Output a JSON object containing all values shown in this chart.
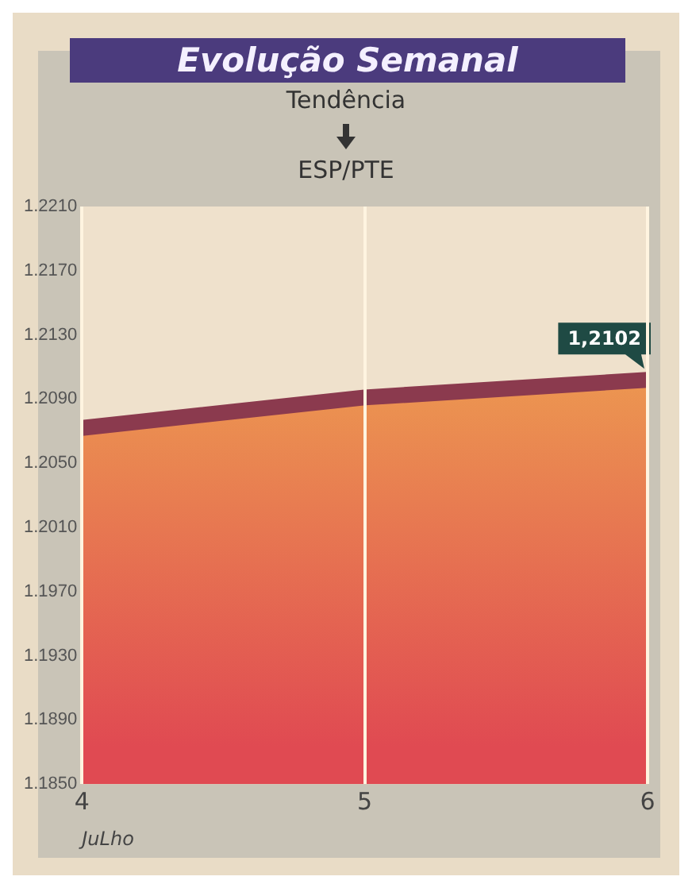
{
  "chart_data": {
    "type": "area",
    "title": "Evolução Semanal",
    "subtitle": "Tendência",
    "annotations": [
      "ESP/PTE"
    ],
    "xlabel": "JuLho",
    "x": [
      4,
      5,
      6
    ],
    "series": [
      {
        "color": "#8b3a4e",
        "values": [
          1.2072,
          1.2091,
          1.2102
        ],
        "value_labels": [
          null,
          null,
          "1,2102"
        ]
      }
    ],
    "xlim": [
      4,
      6
    ],
    "xticks": [
      4,
      5,
      6
    ],
    "ylim": [
      1.185,
      1.221
    ],
    "yticks": [
      {
        "value": 1.185,
        "label": "1.1850"
      },
      {
        "value": 1.189,
        "label": "1.1890"
      },
      {
        "value": 1.193,
        "label": "1.1930"
      },
      {
        "value": 1.197,
        "label": "1.1970"
      },
      {
        "value": 1.201,
        "label": "1.2010"
      },
      {
        "value": 1.205,
        "label": "1.2050"
      },
      {
        "value": 1.209,
        "label": "1.2090"
      },
      {
        "value": 1.213,
        "label": "1.2130"
      },
      {
        "value": 1.217,
        "label": "1.2170"
      },
      {
        "value": 1.221,
        "label": "1.2210"
      }
    ],
    "grid": "x",
    "legend": false
  }
}
